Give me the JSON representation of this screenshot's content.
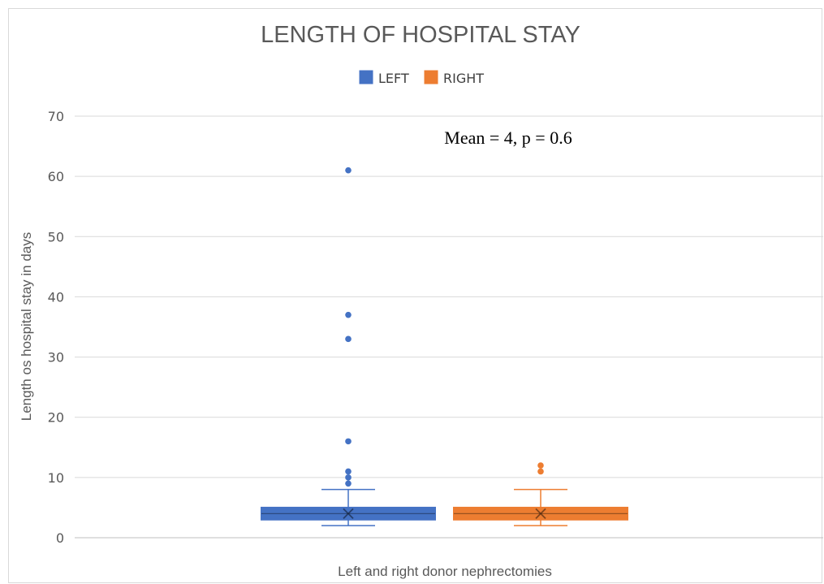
{
  "chart_data": {
    "type": "box",
    "title": "LENGTH OF HOSPITAL STAY",
    "xlabel": "Left and right donor nephrectomies",
    "ylabel": "Length os hospital stay in days",
    "ylim": [
      0,
      70
    ],
    "yticks": [
      0,
      10,
      20,
      30,
      40,
      50,
      60,
      70
    ],
    "grid": true,
    "legend_position": "top-center",
    "annotation": "Mean = 4, p = 0.6",
    "series": [
      {
        "name": "LEFT",
        "color": "#4472C4",
        "min": 2,
        "q1": 3,
        "median": 4,
        "q3": 5,
        "max": 8,
        "mean": 4,
        "outliers": [
          9,
          10,
          11,
          16,
          33,
          37,
          61
        ]
      },
      {
        "name": "RIGHT",
        "color": "#ED7D31",
        "min": 2,
        "q1": 3,
        "median": 4,
        "q3": 5,
        "max": 8,
        "mean": 4,
        "outliers": [
          11,
          12
        ]
      }
    ]
  }
}
